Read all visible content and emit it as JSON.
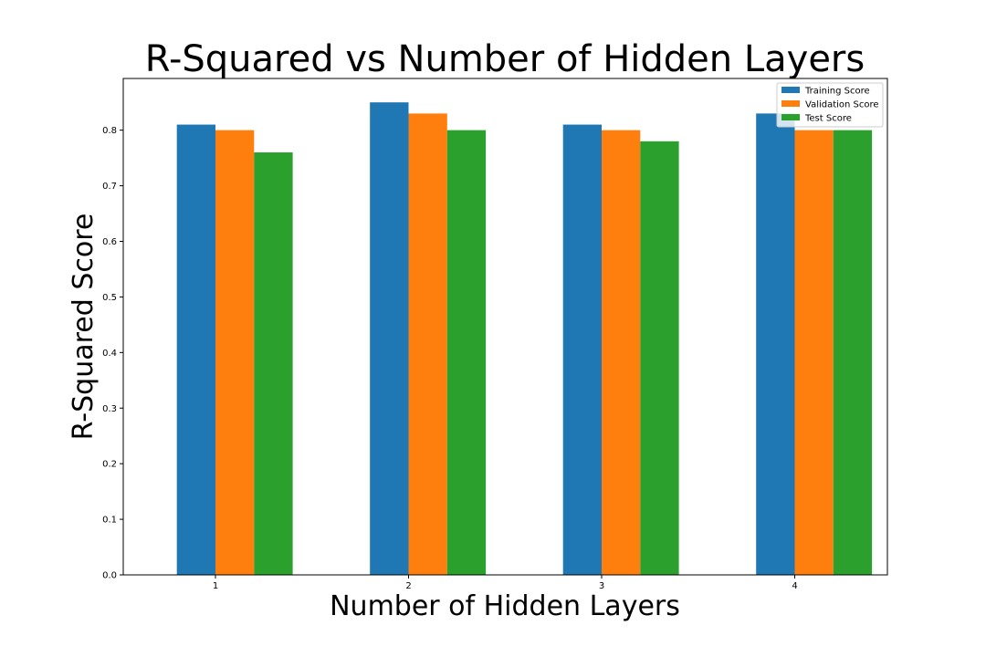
{
  "chart_data": {
    "type": "bar",
    "title": "R-Squared vs Number of Hidden Layers",
    "xlabel": "Number of Hidden Layers",
    "ylabel": "R-Squared Score",
    "categories": [
      "1",
      "2",
      "3",
      "4"
    ],
    "series": [
      {
        "name": "Training Score",
        "color": "#1f77b4",
        "values": [
          0.81,
          0.85,
          0.81,
          0.83
        ]
      },
      {
        "name": "Validation Score",
        "color": "#ff7f0e",
        "values": [
          0.8,
          0.83,
          0.8,
          0.8
        ]
      },
      {
        "name": "Test Score",
        "color": "#2ca02c",
        "values": [
          0.76,
          0.8,
          0.78,
          0.8
        ]
      }
    ],
    "ylim": [
      0,
      0.893
    ],
    "yticks": [
      "0.0",
      "0.1",
      "0.2",
      "0.3",
      "0.4",
      "0.5",
      "0.6",
      "0.7",
      "0.8"
    ],
    "grid": false,
    "legend_position": "top-right"
  }
}
